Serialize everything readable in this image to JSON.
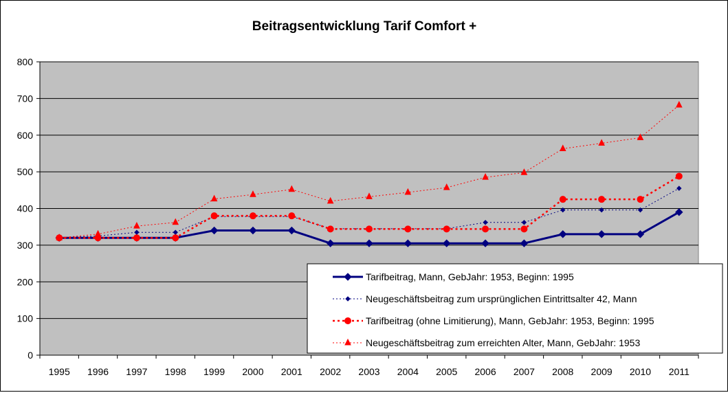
{
  "chart_data": {
    "type": "line",
    "title": "Beitragsentwicklung Tarif Comfort +",
    "xlabel": "",
    "ylabel": "",
    "ylim": [
      0,
      800
    ],
    "yticks": [
      0,
      100,
      200,
      300,
      400,
      500,
      600,
      700,
      800
    ],
    "grid": true,
    "legend_position": "bottom-right",
    "plot_background": "#c0c0c0",
    "categories": [
      "1995",
      "1996",
      "1997",
      "1998",
      "1999",
      "2000",
      "2001",
      "2002",
      "2003",
      "2004",
      "2005",
      "2006",
      "2007",
      "2008",
      "2009",
      "2010",
      "2011"
    ],
    "series": [
      {
        "name": "Tarifbeitrag, Mann, GebJahr: 1953, Beginn: 1995",
        "color": "#000080",
        "style": "solid-thick",
        "marker": "diamond",
        "values": [
          320,
          320,
          320,
          320,
          340,
          340,
          340,
          305,
          305,
          305,
          305,
          305,
          305,
          330,
          330,
          330,
          390
        ]
      },
      {
        "name": "Neugeschäftsbeitrag zum ursprünglichen Eintrittsalter 42, Mann",
        "color": "#000080",
        "style": "dotted-thin",
        "marker": "diamond",
        "values": [
          320,
          325,
          335,
          335,
          378,
          378,
          378,
          345,
          345,
          345,
          345,
          362,
          362,
          396,
          396,
          396,
          455
        ]
      },
      {
        "name": "Tarifbeitrag (ohne Limitierung), Mann, GebJahr: 1953, Beginn: 1995",
        "color": "#ff0000",
        "style": "dotted-thick",
        "marker": "circle",
        "values": [
          320,
          320,
          320,
          320,
          380,
          380,
          380,
          344,
          344,
          344,
          344,
          344,
          344,
          425,
          425,
          425,
          488
        ]
      },
      {
        "name": "Neugeschäftsbeitrag zum erreichten Alter, Mann, GebJahr: 1953",
        "color": "#ff0000",
        "style": "dotted-thin",
        "marker": "triangle",
        "values": [
          320,
          330,
          352,
          362,
          426,
          438,
          452,
          420,
          432,
          444,
          457,
          485,
          498,
          563,
          578,
          593,
          682
        ]
      }
    ]
  }
}
